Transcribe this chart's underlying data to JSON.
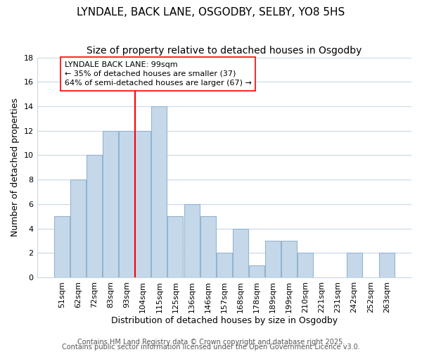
{
  "title": "LYNDALE, BACK LANE, OSGODBY, SELBY, YO8 5HS",
  "subtitle": "Size of property relative to detached houses in Osgodby",
  "xlabel": "Distribution of detached houses by size in Osgodby",
  "ylabel": "Number of detached properties",
  "bar_color": "#c5d8ea",
  "bar_edge_color": "#93b4ce",
  "bins": [
    "51sqm",
    "62sqm",
    "72sqm",
    "83sqm",
    "93sqm",
    "104sqm",
    "115sqm",
    "125sqm",
    "136sqm",
    "146sqm",
    "157sqm",
    "168sqm",
    "178sqm",
    "189sqm",
    "199sqm",
    "210sqm",
    "221sqm",
    "231sqm",
    "242sqm",
    "252sqm",
    "263sqm"
  ],
  "values": [
    5,
    8,
    10,
    12,
    12,
    12,
    14,
    5,
    6,
    5,
    2,
    4,
    1,
    3,
    3,
    2,
    0,
    0,
    2,
    0,
    2
  ],
  "ylim": [
    0,
    18
  ],
  "yticks": [
    0,
    2,
    4,
    6,
    8,
    10,
    12,
    14,
    16,
    18
  ],
  "redline_index": 4.5,
  "annotation_text": "LYNDALE BACK LANE: 99sqm\n← 35% of detached houses are smaller (37)\n64% of semi-detached houses are larger (67) →",
  "footer1": "Contains HM Land Registry data © Crown copyright and database right 2025.",
  "footer2": "Contains public sector information licensed under the Open Government Licence v3.0.",
  "background_color": "#ffffff",
  "grid_color": "#c8d8e8",
  "title_fontsize": 11,
  "subtitle_fontsize": 10,
  "axis_label_fontsize": 9,
  "tick_fontsize": 8,
  "annotation_fontsize": 8,
  "footer_fontsize": 7
}
